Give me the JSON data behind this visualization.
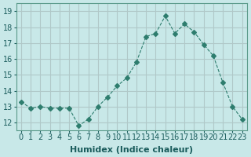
{
  "x": [
    0,
    1,
    2,
    3,
    4,
    5,
    6,
    7,
    8,
    9,
    10,
    11,
    12,
    13,
    14,
    15,
    16,
    17,
    18,
    19,
    20,
    21,
    22,
    23
  ],
  "y": [
    13.3,
    12.9,
    13.0,
    12.9,
    12.9,
    12.9,
    11.8,
    12.2,
    13.0,
    13.6,
    14.3,
    14.8,
    15.8,
    17.4,
    17.6,
    18.7,
    17.6,
    18.2,
    17.7,
    16.9,
    16.2,
    14.5,
    13.0,
    12.2
  ],
  "xlabel": "Humidex (Indice chaleur)",
  "ylabel": "",
  "line_color": "#2e7d6e",
  "marker": "D",
  "marker_size": 3,
  "line_width": 0.8,
  "bg_color": "#c8e8e8",
  "grid_color": "#b0c8c8",
  "xlim": [
    -0.5,
    23.5
  ],
  "ylim": [
    11.5,
    19.5
  ],
  "yticks": [
    12,
    13,
    14,
    15,
    16,
    17,
    18,
    19
  ],
  "xticks": [
    0,
    1,
    2,
    3,
    4,
    5,
    6,
    7,
    8,
    9,
    10,
    11,
    12,
    13,
    14,
    15,
    16,
    17,
    18,
    19,
    20,
    21,
    22,
    23
  ],
  "xlabel_fontsize": 8,
  "tick_fontsize": 7,
  "label_color": "#1a5c5c",
  "spine_color": "#5a9a8a"
}
